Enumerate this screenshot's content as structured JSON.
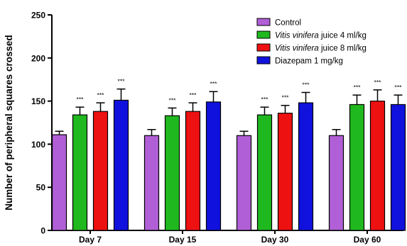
{
  "chart_data": {
    "type": "bar",
    "title": "",
    "xlabel": "",
    "ylabel": "Number of peripheral squares crossed",
    "ylim": [
      0,
      250
    ],
    "yticks": [
      0,
      50,
      100,
      150,
      200,
      250
    ],
    "categories": [
      "Day 7",
      "Day 15",
      "Day 30",
      "Day 60"
    ],
    "legend_position": "top-right",
    "significance_label": "***",
    "series": [
      {
        "name": "Control",
        "name_italic": "",
        "name_rest": "Control",
        "color": "#b05fd6",
        "values": [
          111,
          110,
          110,
          110
        ],
        "errors": [
          4,
          7,
          5,
          7
        ],
        "significance": [
          "",
          "",
          "",
          ""
        ]
      },
      {
        "name": "Vitis vinifera juice 4 ml/kg",
        "name_italic": "Vitis vinifera",
        "name_rest": " juice 4 ml/kg",
        "color": "#1fb81f",
        "values": [
          134,
          133,
          134,
          146
        ],
        "errors": [
          9,
          9,
          9,
          11
        ],
        "significance": [
          "***",
          "***",
          "***",
          "***"
        ]
      },
      {
        "name": "Vitis vinifera juice 8 ml/kg",
        "name_italic": "Vitis vinifera",
        "name_rest": " juice 8 ml/kg",
        "color": "#ee1111",
        "values": [
          138,
          138,
          136,
          150
        ],
        "errors": [
          10,
          10,
          9,
          13
        ],
        "significance": [
          "***",
          "***",
          "***",
          "***"
        ]
      },
      {
        "name": "Diazepam 1 mg/kg",
        "name_italic": "",
        "name_rest": "Diazepam 1 mg/kg",
        "color": "#1111dd",
        "values": [
          151,
          149,
          148,
          146
        ],
        "errors": [
          13,
          12,
          12,
          11
        ],
        "significance": [
          "***",
          "***",
          "***",
          "***"
        ]
      }
    ]
  }
}
